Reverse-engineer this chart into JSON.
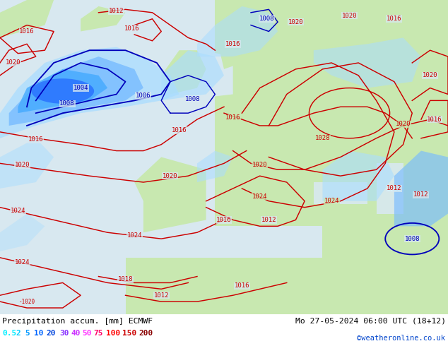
{
  "title_left": "Precipitation accum. [mm] ECMWF",
  "title_right": "Mo 27-05-2024 06:00 UTC (18+12)",
  "credit": "©weatheronline.co.uk",
  "legend_values": [
    "0.5",
    "2",
    "5",
    "10",
    "20",
    "30",
    "40",
    "50",
    "75",
    "100",
    "150",
    "200"
  ],
  "legend_colors": [
    "#00eeff",
    "#00ccff",
    "#0099ff",
    "#0066ff",
    "#0044dd",
    "#8833ff",
    "#cc33ff",
    "#ff33ff",
    "#ff0066",
    "#ff0000",
    "#cc0000",
    "#880000"
  ],
  "background_color": "#ffffff",
  "fig_width": 6.34,
  "fig_height": 4.9,
  "sea_color": "#d8e8f0",
  "land_color": "#c8e8b0",
  "coast_color": "#aaaaaa",
  "pressure_red": "#cc0000",
  "pressure_blue": "#0000bb",
  "precip_light": "#aaddff",
  "precip_mid": "#77bbff",
  "precip_deep": "#44aaff",
  "precip_heavy": "#2266ff"
}
